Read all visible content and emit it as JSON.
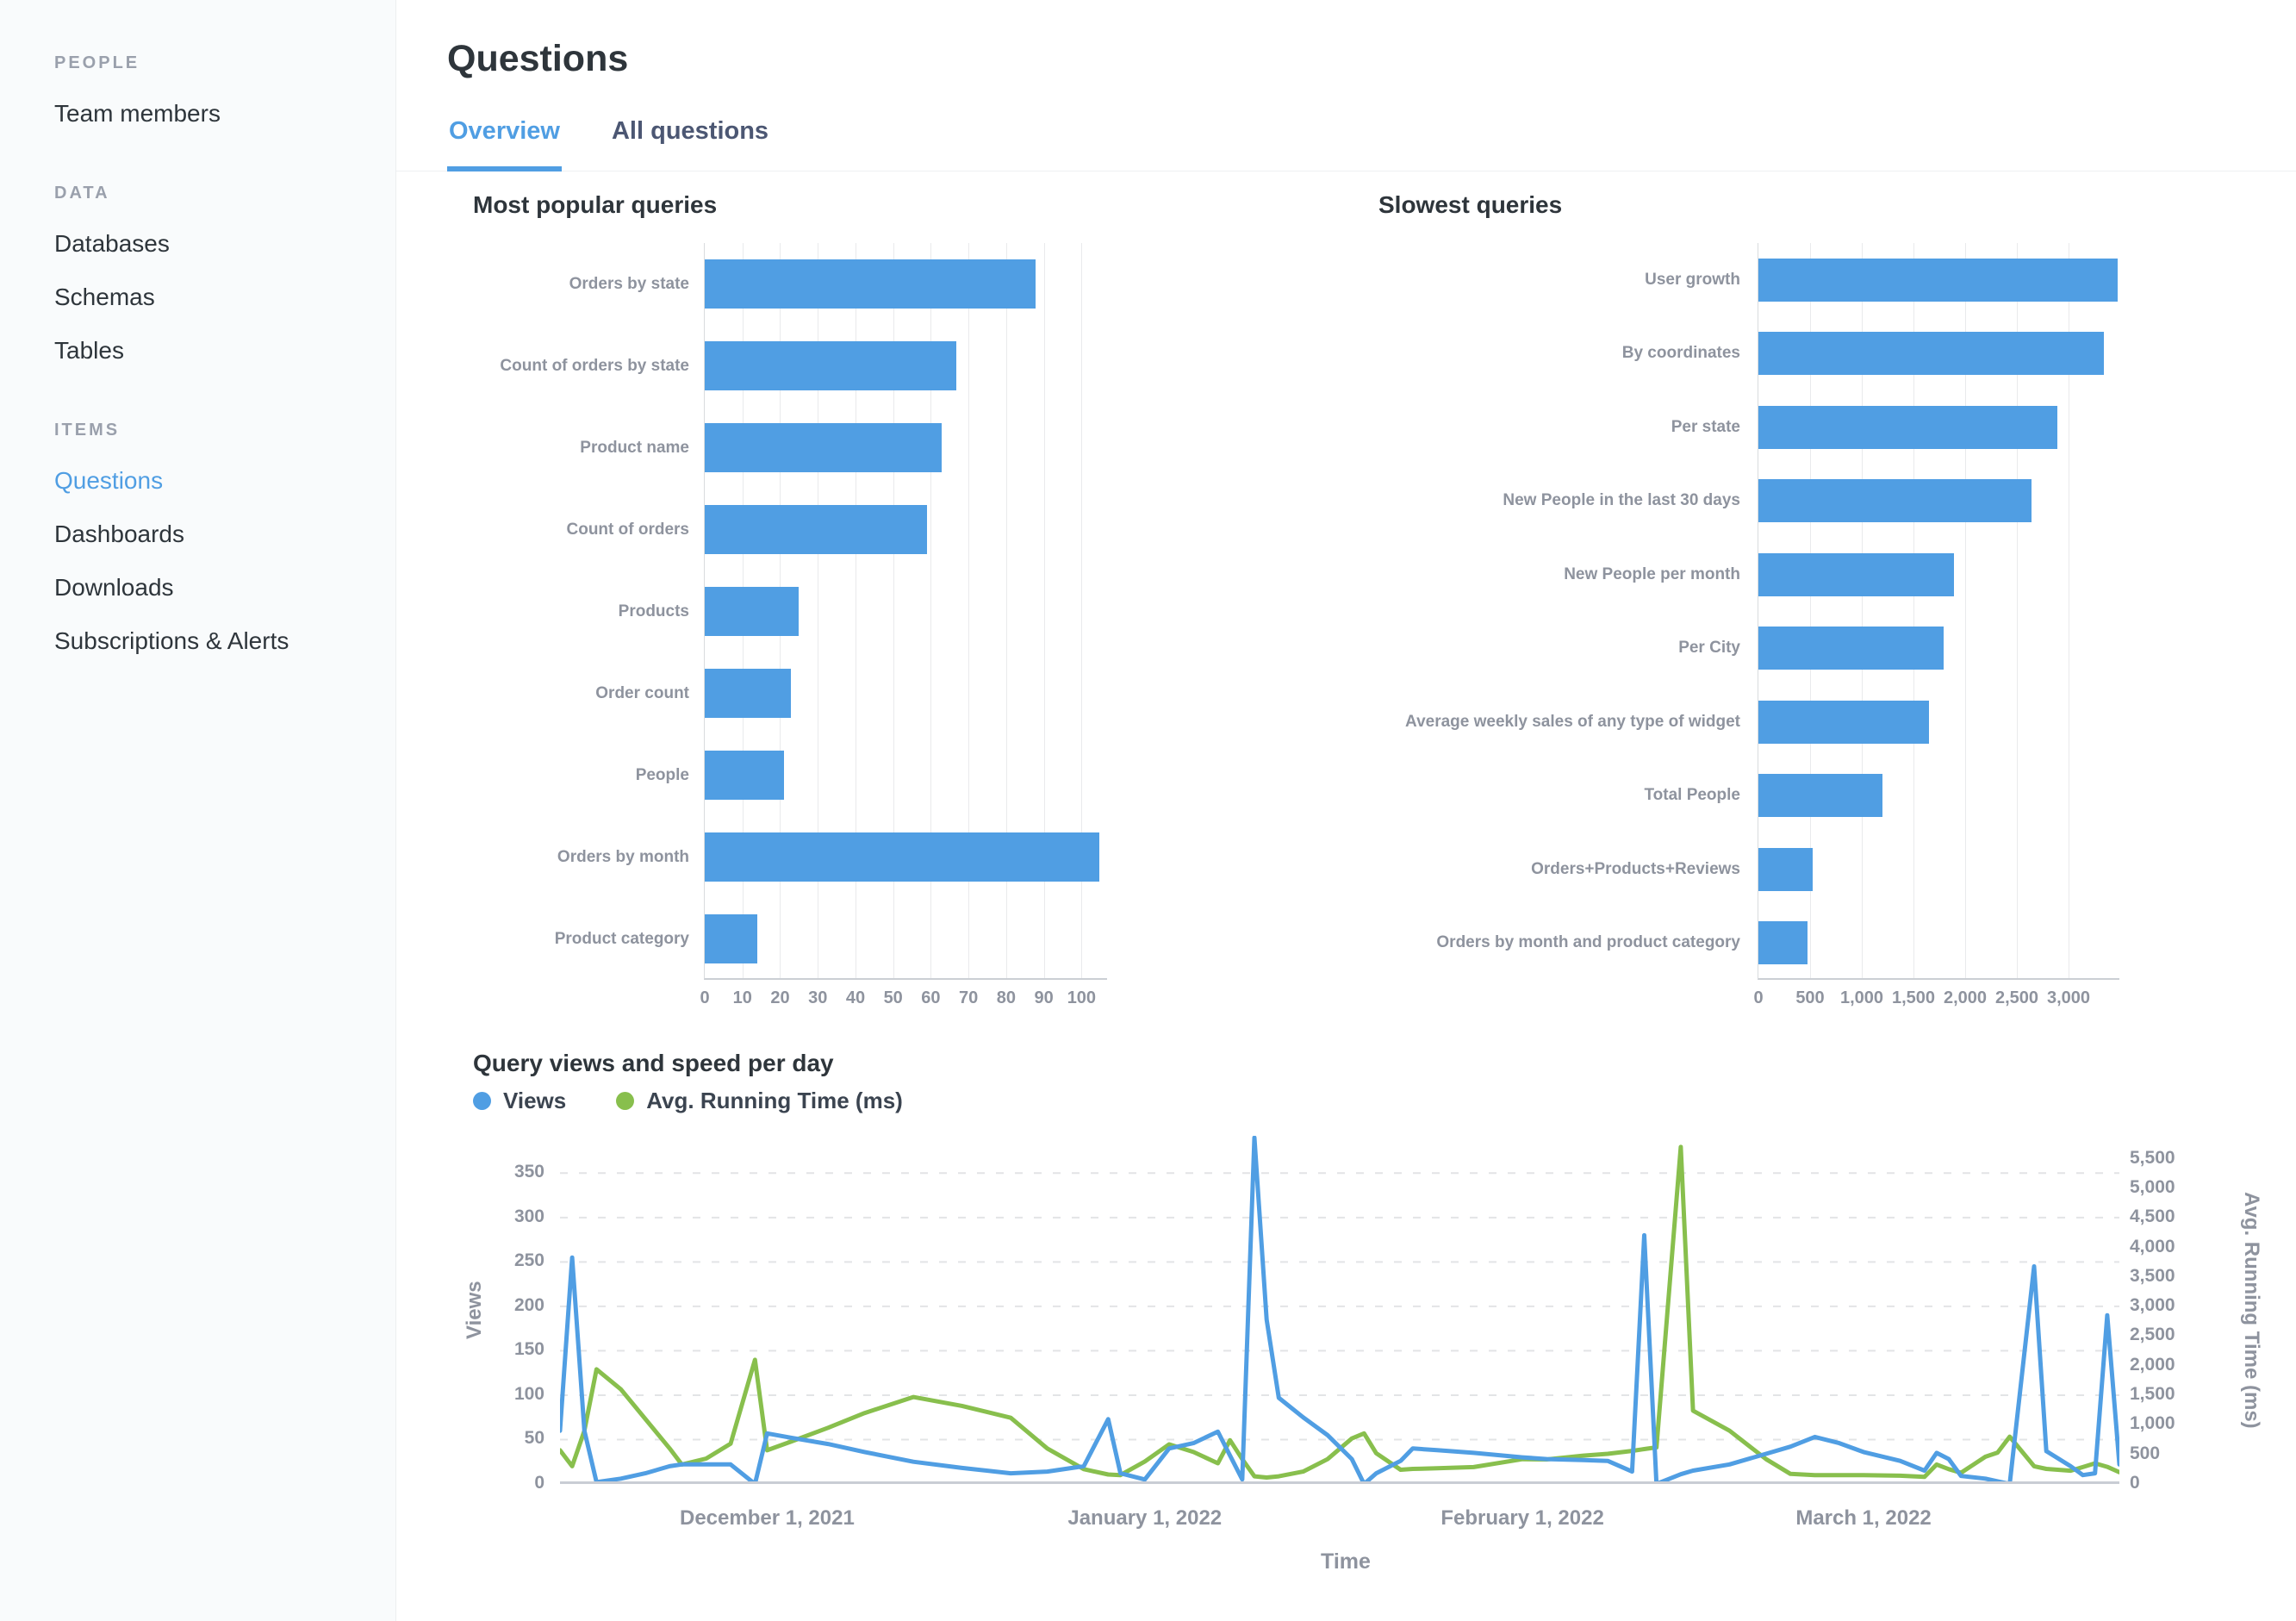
{
  "colors": {
    "accent": "#509EE3",
    "green": "#88BF4D",
    "dark_text": "#2E353B",
    "axis_text": "#8E939E"
  },
  "sidebar": {
    "sections": [
      {
        "header": "PEOPLE",
        "items": [
          {
            "label": "Team members",
            "active": false
          }
        ]
      },
      {
        "header": "DATA",
        "items": [
          {
            "label": "Databases",
            "active": false
          },
          {
            "label": "Schemas",
            "active": false
          },
          {
            "label": "Tables",
            "active": false
          }
        ]
      },
      {
        "header": "ITEMS",
        "items": [
          {
            "label": "Questions",
            "active": true
          },
          {
            "label": "Dashboards",
            "active": false
          },
          {
            "label": "Downloads",
            "active": false
          },
          {
            "label": "Subscriptions & Alerts",
            "active": false
          }
        ]
      }
    ]
  },
  "header": {
    "title": "Questions",
    "tabs": [
      {
        "label": "Overview",
        "active": true
      },
      {
        "label": "All questions",
        "active": false
      }
    ]
  },
  "line_section": {
    "title": "Query views and speed per day",
    "legend": [
      {
        "label": "Views",
        "color": "#509EE3"
      },
      {
        "label": "Avg. Running Time (ms)",
        "color": "#88BF4D"
      }
    ],
    "xlabel": "Time"
  },
  "chart_data": [
    {
      "id": "popular",
      "type": "bar",
      "orientation": "horizontal",
      "title": "Most popular queries",
      "categories": [
        "Orders by state",
        "Count of orders by state",
        "Product name",
        "Count of orders",
        "Products",
        "Order count",
        "People",
        "Orders by month",
        "Product category"
      ],
      "values": [
        88,
        67,
        63,
        59,
        25,
        23,
        21,
        105,
        14
      ],
      "xticks": [
        0,
        10,
        20,
        30,
        40,
        50,
        60,
        70,
        80,
        90,
        100
      ],
      "xtick_labels": [
        "0",
        "10",
        "20",
        "30",
        "40",
        "50",
        "60",
        "70",
        "80",
        "90",
        "100"
      ],
      "xmax": 107,
      "grid": true,
      "bar_color": "#509EE3"
    },
    {
      "id": "slowest",
      "type": "bar",
      "orientation": "horizontal",
      "title": "Slowest queries",
      "categories": [
        "User growth",
        "By coordinates",
        "Per state",
        "New People in the last 30 days",
        "New People per month",
        "Per City",
        "Average weekly sales of any type of widget",
        "Total People",
        "Orders+Products+Reviews",
        "Orders by month and product category"
      ],
      "values": [
        3480,
        3350,
        2900,
        2650,
        1900,
        1800,
        1650,
        1200,
        530,
        480
      ],
      "xticks": [
        0,
        500,
        1000,
        1500,
        2000,
        2500,
        3000
      ],
      "xtick_labels": [
        "0",
        "500",
        "1,000",
        "1,500",
        "2,000",
        "2,500",
        "3,000"
      ],
      "xmax": 3500,
      "grid": true,
      "bar_color": "#509EE3"
    },
    {
      "id": "timeseries",
      "type": "line",
      "title": "Query views and speed per day",
      "xlabel": "Time",
      "y_left": {
        "label": "Views",
        "ticks": [
          0,
          50,
          100,
          150,
          200,
          250,
          300,
          350
        ],
        "tick_labels": [
          "0",
          "50",
          "100",
          "150",
          "200",
          "250",
          "300",
          "350"
        ],
        "max": 392
      },
      "y_right": {
        "label": "Avg. Running Time (ms)",
        "ticks": [
          0,
          500,
          1000,
          1500,
          2000,
          2500,
          3000,
          3500,
          4000,
          4500,
          5000,
          5500
        ],
        "tick_labels": [
          "0",
          "500",
          "1,000",
          "1,500",
          "2,000",
          "2,500",
          "3,000",
          "3,500",
          "4,000",
          "4,500",
          "5,000",
          "5,500"
        ],
        "max": 5888
      },
      "x_months": [
        {
          "label": "December 1, 2021",
          "day": 17
        },
        {
          "label": "January 1, 2022",
          "day": 48
        },
        {
          "label": "February 1, 2022",
          "day": 79
        },
        {
          "label": "March 1, 2022",
          "day": 107
        }
      ],
      "x_start_date": "2021-11-14",
      "x_total_days": 128,
      "series": [
        {
          "name": "Views",
          "color": "#509EE3",
          "axis": "left"
        },
        {
          "name": "Avg. Running Time (ms)",
          "color": "#88BF4D",
          "axis": "right"
        }
      ],
      "points": [
        {
          "day": 0,
          "date": "2021-11-14",
          "views": 60,
          "ms": 570
        },
        {
          "day": 1,
          "date": "2021-11-15",
          "views": 255,
          "ms": 300
        },
        {
          "day": 2,
          "date": "2021-11-16",
          "views": 60,
          "ms": 900
        },
        {
          "day": 3,
          "date": "2021-11-17",
          "views": 2,
          "ms": 1940
        },
        {
          "day": 5,
          "date": "2021-11-19",
          "views": 6,
          "ms": 1600
        },
        {
          "day": 7,
          "date": "2021-11-21",
          "views": 12,
          "ms": 1100
        },
        {
          "day": 9,
          "date": "2021-11-23",
          "views": 20,
          "ms": 600
        },
        {
          "day": 10,
          "date": "2021-11-24",
          "views": 22,
          "ms": 330
        },
        {
          "day": 12,
          "date": "2021-11-26",
          "views": 22,
          "ms": 430
        },
        {
          "day": 14,
          "date": "2021-11-28",
          "views": 22,
          "ms": 680
        },
        {
          "day": 16,
          "date": "2021-11-30",
          "views": 0,
          "ms": 2100
        },
        {
          "day": 17,
          "date": "2021-12-01",
          "views": 57,
          "ms": 570
        },
        {
          "day": 19,
          "date": "2021-12-03",
          "views": 52,
          "ms": 720
        },
        {
          "day": 22,
          "date": "2021-12-06",
          "views": 45,
          "ms": 950
        },
        {
          "day": 25,
          "date": "2021-12-09",
          "views": 36,
          "ms": 1200
        },
        {
          "day": 29,
          "date": "2021-12-13",
          "views": 25,
          "ms": 1470
        },
        {
          "day": 33,
          "date": "2021-12-17",
          "views": 18,
          "ms": 1320
        },
        {
          "day": 37,
          "date": "2021-12-21",
          "views": 12,
          "ms": 1120
        },
        {
          "day": 40,
          "date": "2021-12-24",
          "views": 14,
          "ms": 600
        },
        {
          "day": 43,
          "date": "2021-12-27",
          "views": 20,
          "ms": 250
        },
        {
          "day": 45,
          "date": "2021-12-29",
          "views": 73,
          "ms": 160
        },
        {
          "day": 46,
          "date": "2021-12-30",
          "views": 12,
          "ms": 150
        },
        {
          "day": 48,
          "date": "2022-01-01",
          "views": 5,
          "ms": 380
        },
        {
          "day": 50,
          "date": "2022-01-03",
          "views": 40,
          "ms": 670
        },
        {
          "day": 52,
          "date": "2022-01-05",
          "views": 46,
          "ms": 540
        },
        {
          "day": 54,
          "date": "2022-01-07",
          "views": 59,
          "ms": 350
        },
        {
          "day": 55,
          "date": "2022-01-08",
          "views": 32,
          "ms": 740
        },
        {
          "day": 56,
          "date": "2022-01-09",
          "views": 5,
          "ms": 420
        },
        {
          "day": 57,
          "date": "2022-01-10",
          "views": 390,
          "ms": 130
        },
        {
          "day": 58,
          "date": "2022-01-11",
          "views": 185,
          "ms": 110
        },
        {
          "day": 59,
          "date": "2022-01-12",
          "views": 97,
          "ms": 130
        },
        {
          "day": 61,
          "date": "2022-01-14",
          "views": 75,
          "ms": 210
        },
        {
          "day": 63,
          "date": "2022-01-16",
          "views": 55,
          "ms": 420
        },
        {
          "day": 65,
          "date": "2022-01-18",
          "views": 28,
          "ms": 770
        },
        {
          "day": 66,
          "date": "2022-01-19",
          "views": 0,
          "ms": 855
        },
        {
          "day": 67,
          "date": "2022-01-20",
          "views": 12,
          "ms": 520
        },
        {
          "day": 69,
          "date": "2022-01-22",
          "views": 26,
          "ms": 240
        },
        {
          "day": 70,
          "date": "2022-01-23",
          "views": 40,
          "ms": 255
        },
        {
          "day": 72,
          "date": "2022-01-25",
          "views": 38,
          "ms": 265
        },
        {
          "day": 75,
          "date": "2022-01-28",
          "views": 35,
          "ms": 285
        },
        {
          "day": 79,
          "date": "2022-02-01",
          "views": 30,
          "ms": 420
        },
        {
          "day": 81,
          "date": "2022-02-03",
          "views": 28,
          "ms": 415
        },
        {
          "day": 84,
          "date": "2022-02-06",
          "views": 27,
          "ms": 480
        },
        {
          "day": 86,
          "date": "2022-02-08",
          "views": 26,
          "ms": 510
        },
        {
          "day": 88,
          "date": "2022-02-10",
          "views": 14,
          "ms": 560
        },
        {
          "day": 89,
          "date": "2022-02-11",
          "views": 280,
          "ms": 590
        },
        {
          "day": 90,
          "date": "2022-02-12",
          "views": 0,
          "ms": 620
        },
        {
          "day": 92,
          "date": "2022-02-14",
          "views": 11,
          "ms": 5700
        },
        {
          "day": 93,
          "date": "2022-02-15",
          "views": 15,
          "ms": 1240
        },
        {
          "day": 96,
          "date": "2022-02-18",
          "views": 22,
          "ms": 900
        },
        {
          "day": 99,
          "date": "2022-02-21",
          "views": 34,
          "ms": 420
        },
        {
          "day": 101,
          "date": "2022-02-23",
          "views": 42,
          "ms": 170
        },
        {
          "day": 103,
          "date": "2022-02-25",
          "views": 53,
          "ms": 150
        },
        {
          "day": 105,
          "date": "2022-02-27",
          "views": 46,
          "ms": 150
        },
        {
          "day": 107,
          "date": "2022-03-01",
          "views": 36,
          "ms": 150
        },
        {
          "day": 110,
          "date": "2022-03-04",
          "views": 26,
          "ms": 140
        },
        {
          "day": 112,
          "date": "2022-03-06",
          "views": 15,
          "ms": 120
        },
        {
          "day": 113,
          "date": "2022-03-07",
          "views": 35,
          "ms": 330
        },
        {
          "day": 114,
          "date": "2022-03-08",
          "views": 28,
          "ms": 250
        },
        {
          "day": 115,
          "date": "2022-03-09",
          "views": 9,
          "ms": 190
        },
        {
          "day": 117,
          "date": "2022-03-11",
          "views": 6,
          "ms": 460
        },
        {
          "day": 118,
          "date": "2022-03-12",
          "views": 3,
          "ms": 530
        },
        {
          "day": 119,
          "date": "2022-03-13",
          "views": 0,
          "ms": 800
        },
        {
          "day": 121,
          "date": "2022-03-15",
          "views": 245,
          "ms": 300
        },
        {
          "day": 122,
          "date": "2022-03-16",
          "views": 37,
          "ms": 255
        },
        {
          "day": 124,
          "date": "2022-03-18",
          "views": 20,
          "ms": 225
        },
        {
          "day": 125,
          "date": "2022-03-19",
          "views": 10,
          "ms": 285
        },
        {
          "day": 126,
          "date": "2022-03-20",
          "views": 12,
          "ms": 350
        },
        {
          "day": 127,
          "date": "2022-03-21",
          "views": 190,
          "ms": 290
        },
        {
          "day": 128,
          "date": "2022-03-22",
          "views": 22,
          "ms": 200
        }
      ]
    }
  ]
}
